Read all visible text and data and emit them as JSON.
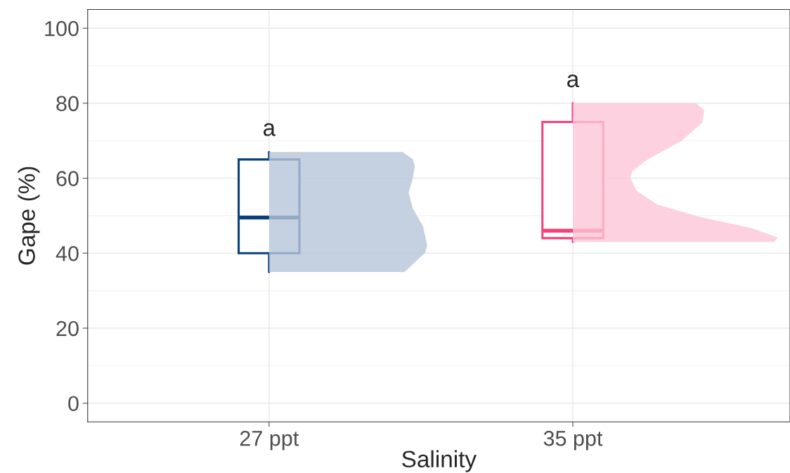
{
  "chart_data": {
    "type": "box",
    "xlabel": "Salinity",
    "ylabel": "Gape (%)",
    "categories": [
      "27 ppt",
      "35 ppt"
    ],
    "series": [
      {
        "color": "#0b3f7c",
        "boxes": [
          {
            "low": 35,
            "q1": 40,
            "median": 49.5,
            "q3": 65,
            "high": 67
          },
          null
        ]
      },
      {
        "color": "#f7407a",
        "boxes": [
          null,
          {
            "low": 43,
            "q1": 44,
            "median": 46,
            "q3": 75,
            "high": 80
          }
        ]
      }
    ],
    "annotations": [
      "a",
      "a"
    ],
    "ylim": [
      -5,
      105
    ],
    "yticks": [
      0,
      20,
      40,
      60,
      80,
      100
    ],
    "grid": true
  }
}
